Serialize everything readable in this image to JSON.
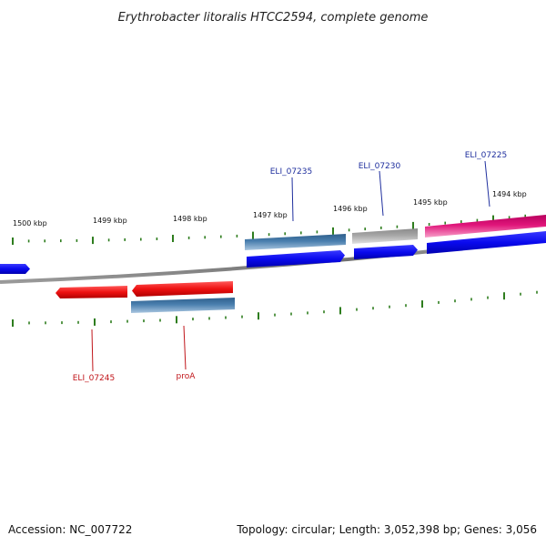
{
  "title": "Erythrobacter litoralis HTCC2594, complete genome",
  "footer": {
    "accession": "Accession: NC_007722",
    "summary": "Topology: circular; Length: 3,052,398 bp; Genes: 3,056"
  },
  "colors": {
    "backbone": "#7a7a7a",
    "tick": "#2e7d1e",
    "label_forward": "#1f2f9e",
    "label_reverse": "#c0151a",
    "red": "#ee1111",
    "blue": "#0a0aee",
    "steelblue": "#4a7fae",
    "gray": "#a6a6a6",
    "pink": "#e0157a"
  },
  "scale": {
    "ticks": [
      {
        "label": "1500 kbp"
      },
      {
        "label": "1499 kbp"
      },
      {
        "label": "1498 kbp"
      },
      {
        "label": "1497 kbp"
      },
      {
        "label": "1496 kbp"
      },
      {
        "label": "1495 kbp"
      },
      {
        "label": "1494 kbp"
      }
    ]
  },
  "genes_forward": [
    {
      "name": "ELI_07235"
    },
    {
      "name": "ELI_07230"
    },
    {
      "name": "ELI_07225"
    }
  ],
  "genes_reverse": [
    {
      "name": "ELI_07245"
    },
    {
      "name": "proA"
    }
  ]
}
